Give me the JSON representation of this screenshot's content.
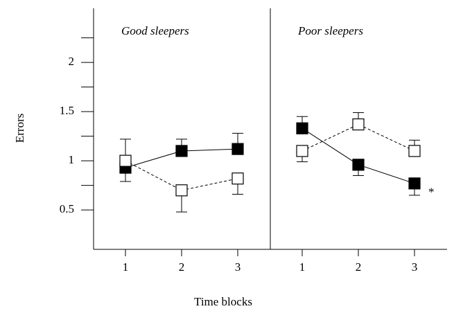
{
  "chart_data": {
    "type": "line",
    "ylabel": "Errors",
    "xlabel": "Time blocks",
    "ylim": [
      0.1,
      2.55
    ],
    "yticks": [
      0.5,
      1,
      1.5,
      2
    ],
    "yminor_ticks": [
      0.75,
      1.25,
      1.75,
      2.25
    ],
    "panels": [
      {
        "title": "Good sleepers",
        "categories": [
          "1",
          "2",
          "3"
        ],
        "series": [
          {
            "marker": "filled",
            "line": "solid",
            "values": [
              0.93,
              1.1,
              1.12
            ],
            "errors": [
              0.14,
              0.12,
              0.16
            ],
            "error_direction": [
              "down",
              "up",
              "up"
            ]
          },
          {
            "marker": "open",
            "line": "dashed",
            "values": [
              1.0,
              0.7,
              0.82
            ],
            "errors": [
              0.22,
              0.22,
              0.16
            ],
            "error_direction": [
              "up",
              "down",
              "down"
            ]
          }
        ]
      },
      {
        "title": "Poor sleepers",
        "categories": [
          "1",
          "2",
          "3"
        ],
        "annotation": "*",
        "series": [
          {
            "marker": "filled",
            "line": "solid",
            "values": [
              1.33,
              0.96,
              0.77
            ],
            "errors": [
              0.12,
              0.11,
              0.12
            ],
            "error_direction": [
              "up",
              "down",
              "down"
            ]
          },
          {
            "marker": "open",
            "line": "dashed",
            "values": [
              1.1,
              1.37,
              1.1
            ],
            "errors": [
              0.11,
              0.12,
              0.11
            ],
            "error_direction": [
              "down",
              "up",
              "up"
            ]
          }
        ]
      }
    ]
  }
}
